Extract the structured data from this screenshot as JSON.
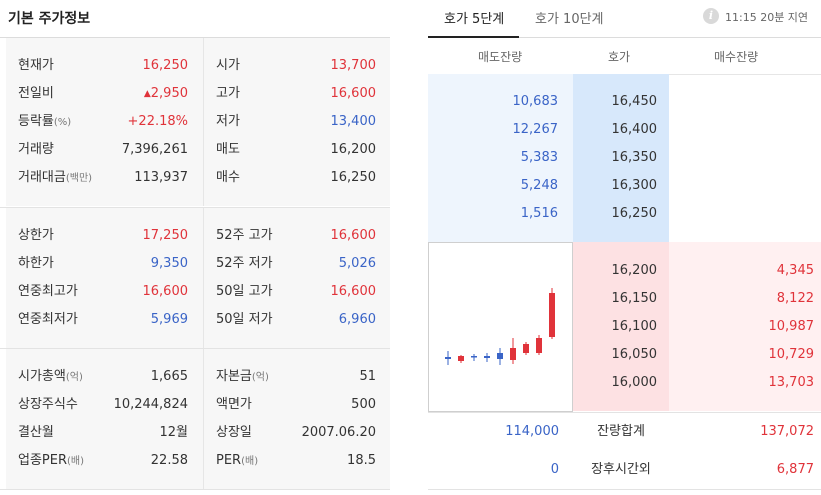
{
  "left": {
    "title": "기본 주가정보",
    "group1": [
      {
        "l_label": "현재가",
        "l_value": "16,250",
        "r_label": "시가",
        "r_value": "13,700"
      },
      {
        "l_label": "전일비",
        "l_arrow": "▲",
        "l_value": "2,950",
        "r_label": "고가",
        "r_value": "16,600"
      },
      {
        "l_label": "등락률",
        "l_unit": "(%)",
        "l_value": "+22.18%",
        "r_label": "저가",
        "r_value": "13,400"
      },
      {
        "l_label": "거래량",
        "l_value": "7,396,261",
        "r_label": "매도",
        "r_value": "16,200"
      },
      {
        "l_label": "거래대금",
        "l_unit": "(백만)",
        "l_value": "113,937",
        "r_label": "매수",
        "r_value": "16,250"
      }
    ],
    "group2": [
      {
        "l_label": "상한가",
        "l_value": "17,250",
        "r_label": "52주 고가",
        "r_value": "16,600"
      },
      {
        "l_label": "하한가",
        "l_value": "9,350",
        "r_label": "52주 저가",
        "r_value": "5,026"
      },
      {
        "l_label": "연중최고가",
        "l_value": "16,600",
        "r_label": "50일 고가",
        "r_value": "16,600"
      },
      {
        "l_label": "연중최저가",
        "l_value": "5,969",
        "r_label": "50일 저가",
        "r_value": "6,960"
      }
    ],
    "group3": [
      {
        "l_label": "시가총액",
        "l_unit": "(억)",
        "l_value": "1,665",
        "r_label": "자본금",
        "r_unit": "(억)",
        "r_value": "51"
      },
      {
        "l_label": "상장주식수",
        "l_value": "10,244,824",
        "r_label": "액면가",
        "r_value": "500"
      },
      {
        "l_label": "결산월",
        "l_value": "12월",
        "r_label": "상장일",
        "r_value": "2007.06.20"
      },
      {
        "l_label": "업종PER",
        "l_unit": "(배)",
        "l_value": "22.58",
        "r_label": "PER",
        "r_unit": "(배)",
        "r_value": "18.5"
      }
    ]
  },
  "right": {
    "tabs": [
      "호가 5단계",
      "호가 10단계"
    ],
    "info_icon": "i",
    "delay_text": "11:15 20분 지연",
    "header": {
      "sell": "매도잔량",
      "price": "호가",
      "buy": "매수잔량"
    },
    "asks": [
      {
        "qty": "10,683",
        "price": "16,450"
      },
      {
        "qty": "12,267",
        "price": "16,400"
      },
      {
        "qty": "5,383",
        "price": "16,350"
      },
      {
        "qty": "5,248",
        "price": "16,300"
      },
      {
        "qty": "1,516",
        "price": "16,250"
      }
    ],
    "bids": [
      {
        "price": "16,200",
        "qty": "4,345"
      },
      {
        "price": "16,150",
        "qty": "8,122"
      },
      {
        "price": "16,100",
        "qty": "10,987"
      },
      {
        "price": "16,050",
        "qty": "10,729"
      },
      {
        "price": "16,000",
        "qty": "13,703"
      }
    ],
    "total": {
      "ask": "114,000",
      "label": "잔량합계",
      "bid": "137,072"
    },
    "after_hours": {
      "ask": "0",
      "label": "장후시간외",
      "bid": "6,877"
    }
  },
  "colors": {
    "up": "#e0333a",
    "down": "#3a64c7",
    "ask_bg": "#eef5fd",
    "bid_bg": "#fff0f1"
  }
}
